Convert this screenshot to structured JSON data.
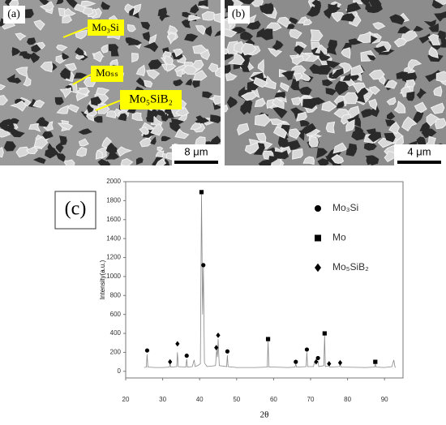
{
  "panels": {
    "a": {
      "label": "(a)",
      "callouts": [
        "Mo₃Si",
        "Moₛₛ",
        "Mo₅SiB₂"
      ],
      "scale_bar": "8 μm"
    },
    "b": {
      "label": "(b)",
      "scale_bar": "4 μm"
    },
    "c": {
      "label": "(c)"
    }
  },
  "chart_data": {
    "type": "line",
    "xlabel": "2θ",
    "ylabel": "Intensity(a.u.)",
    "xlim": [
      20,
      95
    ],
    "ylim": [
      -70,
      2000
    ],
    "xticks": [
      20,
      30,
      40,
      50,
      60,
      70,
      80,
      90
    ],
    "yticks": [
      0,
      200,
      400,
      600,
      800,
      1000,
      1200,
      1400,
      1600,
      1800,
      2000
    ],
    "line_color": "#888888",
    "x": [
      25,
      25.6,
      25.8,
      26,
      28,
      30,
      31.8,
      32,
      32.2,
      33.8,
      34,
      34.2,
      36.3,
      36.5,
      36.7,
      38,
      38.5,
      38.8,
      39.5,
      40.2,
      40.5,
      40.8,
      41,
      41.3,
      42,
      44.3,
      44.6,
      44.8,
      45,
      45.3,
      47.3,
      47.5,
      47.7,
      50,
      55,
      58.3,
      58.5,
      58.7,
      60,
      64,
      65.8,
      66,
      66.2,
      68.8,
      69,
      69.2,
      70.8,
      71,
      71.5,
      72,
      72.2,
      73.6,
      73.8,
      74,
      75,
      75.2,
      77.8,
      78,
      78.2,
      85,
      87.3,
      87.5,
      87.7,
      90,
      92,
      92.5,
      92.8,
      93
    ],
    "values": [
      40,
      45,
      180,
      45,
      40,
      40,
      45,
      80,
      45,
      50,
      200,
      50,
      45,
      130,
      45,
      50,
      120,
      50,
      60,
      80,
      1880,
      600,
      1110,
      90,
      50,
      60,
      230,
      150,
      340,
      60,
      50,
      170,
      50,
      40,
      40,
      45,
      320,
      45,
      45,
      40,
      45,
      80,
      45,
      50,
      200,
      50,
      50,
      90,
      100,
      110,
      50,
      60,
      380,
      50,
      60,
      45,
      50,
      80,
      45,
      40,
      45,
      80,
      45,
      40,
      50,
      120,
      50,
      40
    ],
    "series": [
      {
        "name": "Mo₃Si",
        "marker": "circle",
        "color": "#000000",
        "x": [
          25.8,
          36.5,
          41,
          47.5,
          66,
          69,
          72
        ],
        "values": [
          220,
          165,
          1120,
          210,
          100,
          230,
          140
        ]
      },
      {
        "name": "Mo",
        "marker": "square",
        "color": "#000000",
        "x": [
          40.5,
          58.5,
          73.8,
          87.5
        ],
        "values": [
          1890,
          340,
          400,
          100
        ]
      },
      {
        "name": "Mo₅SiB₂",
        "marker": "diamond",
        "color": "#000000",
        "x": [
          32,
          34,
          44.5,
          45,
          71.5,
          75,
          78
        ],
        "values": [
          100,
          290,
          250,
          380,
          100,
          80,
          90
        ]
      }
    ]
  }
}
